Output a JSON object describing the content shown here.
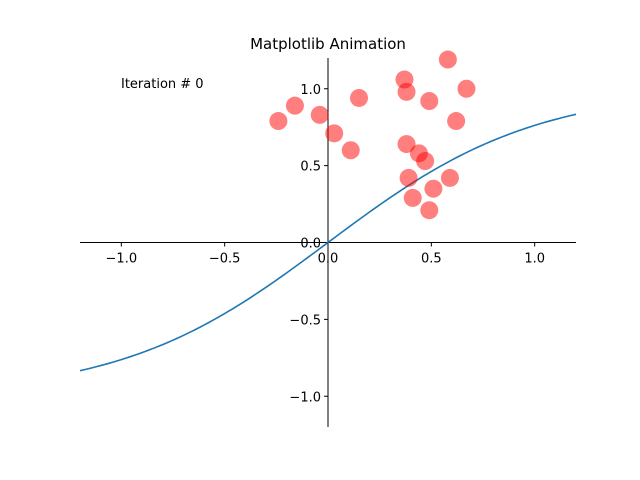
{
  "chart_data": {
    "type": "scatter",
    "title": "Matplotlib Animation",
    "annotation": "Iteration # 0",
    "xlim": [
      -1.2,
      1.2
    ],
    "ylim": [
      -1.2,
      1.2
    ],
    "grid": false,
    "spines": "centered",
    "x_ticks": [
      -1.0,
      -0.5,
      0.0,
      0.5,
      1.0
    ],
    "y_ticks": [
      -1.0,
      -0.5,
      0.0,
      0.5,
      1.0
    ],
    "x_tick_labels": [
      "−1.0",
      "−0.5",
      "0.0",
      "0.5",
      "1.0"
    ],
    "y_tick_labels": [
      "−1.0",
      "−0.5",
      "0.0",
      "0.5",
      "1.0"
    ],
    "curve": {
      "function": "tanh",
      "color": "#1f77b4",
      "x": [
        -1.2,
        -1.0,
        -0.8,
        -0.6,
        -0.4,
        -0.2,
        0.0,
        0.2,
        0.4,
        0.6,
        0.8,
        1.0,
        1.2
      ],
      "y": [
        -0.834,
        -0.762,
        -0.664,
        -0.537,
        -0.38,
        -0.197,
        0.0,
        0.197,
        0.38,
        0.537,
        0.664,
        0.762,
        0.834
      ]
    },
    "points": {
      "color": "#ff0000",
      "opacity": 0.5,
      "x": [
        0.58,
        0.67,
        0.37,
        0.38,
        0.49,
        0.15,
        -0.16,
        -0.24,
        -0.04,
        0.03,
        0.62,
        0.38,
        0.11,
        0.44,
        0.47,
        0.39,
        0.59,
        0.51,
        0.41,
        0.49
      ],
      "y": [
        1.19,
        1.0,
        1.06,
        0.98,
        0.92,
        0.94,
        0.89,
        0.79,
        0.83,
        0.71,
        0.79,
        0.64,
        0.6,
        0.58,
        0.53,
        0.42,
        0.42,
        0.35,
        0.29,
        0.21
      ]
    }
  }
}
